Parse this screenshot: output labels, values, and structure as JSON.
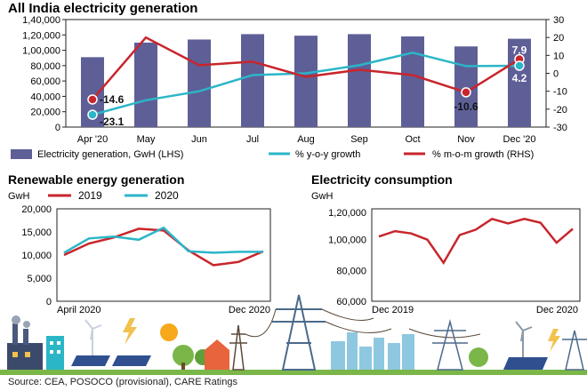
{
  "source": "Source: CEA, POSOCO (provisional), CARE Ratings",
  "colors": {
    "bar": "#5e5f97",
    "yoy": "#2bb6c8",
    "mom": "#c8252c",
    "renew_2019": "#c8252c",
    "renew_2020": "#2bb6c8",
    "consumption": "#c8252c"
  },
  "chart_data": [
    {
      "type": "bar",
      "title": "All India electricity generation",
      "categories": [
        "Apr '20",
        "May",
        "Jun",
        "Jul",
        "Aug",
        "Sep",
        "Oct",
        "Nov",
        "Dec '20"
      ],
      "left_ylim": [
        0,
        140000
      ],
      "left_ticks": [
        "0",
        "20,000",
        "40,000",
        "60,000",
        "80,000",
        "1,00,000",
        "1,20,000",
        "1,40,000"
      ],
      "right_ylim": [
        -30,
        30
      ],
      "right_ticks": [
        "30",
        "20",
        "10",
        "0",
        "-10",
        "-20",
        "-30"
      ],
      "series": [
        {
          "name": "Electricity generation, GwH (LHS)",
          "type": "bar",
          "axis": "left",
          "values": [
            91000,
            110000,
            114000,
            121000,
            119000,
            121000,
            118000,
            105000,
            115000
          ]
        },
        {
          "name": "% y-o-y growth",
          "type": "line",
          "axis": "right",
          "values": [
            -23.1,
            -15,
            -10,
            -1,
            0,
            4.5,
            11.5,
            4,
            4.2
          ]
        },
        {
          "name": "% m-o-m growth (RHS)",
          "type": "line",
          "axis": "right",
          "values": [
            -14.6,
            20,
            4.5,
            6.5,
            -2,
            2,
            -1,
            -10.6,
            7.9
          ]
        }
      ],
      "annotations": [
        {
          "series": 1,
          "index": 0,
          "text": "-23.1"
        },
        {
          "series": 2,
          "index": 0,
          "text": "-14.6"
        },
        {
          "series": 2,
          "index": 7,
          "text": "-10.6"
        },
        {
          "series": 2,
          "index": 8,
          "text": "7.9"
        },
        {
          "series": 1,
          "index": 8,
          "text": "4.2"
        }
      ],
      "grid": false,
      "legend": "bottom"
    },
    {
      "type": "line",
      "title": "Renewable energy generation",
      "ylabel": "GwH",
      "ylim": [
        0,
        20000
      ],
      "y_ticks": [
        "0",
        "5,000",
        "10,000",
        "15,000",
        "20,000"
      ],
      "x_labels": [
        "April 2020",
        "Dec 2020"
      ],
      "legend": "top",
      "series": [
        {
          "name": "2019",
          "values": [
            10000,
            12500,
            13800,
            15700,
            15300,
            11000,
            7800,
            8500,
            10800
          ]
        },
        {
          "name": "2020",
          "values": [
            10500,
            13600,
            14000,
            13300,
            15900,
            10800,
            10500,
            10700,
            10700
          ]
        }
      ]
    },
    {
      "type": "line",
      "title": "Electricity consumption",
      "ylabel": "GwH",
      "ylim": [
        60000,
        120000
      ],
      "y_ticks": [
        "60,000",
        "80,000",
        "1,00,000",
        "1,20,000"
      ],
      "x_labels": [
        "Dec 2019",
        "Dec 2020"
      ],
      "series": [
        {
          "values": [
            102000,
            105500,
            104000,
            100000,
            85000,
            103000,
            106500,
            113500,
            110500,
            113500,
            111000,
            98000,
            107000
          ]
        }
      ]
    }
  ]
}
